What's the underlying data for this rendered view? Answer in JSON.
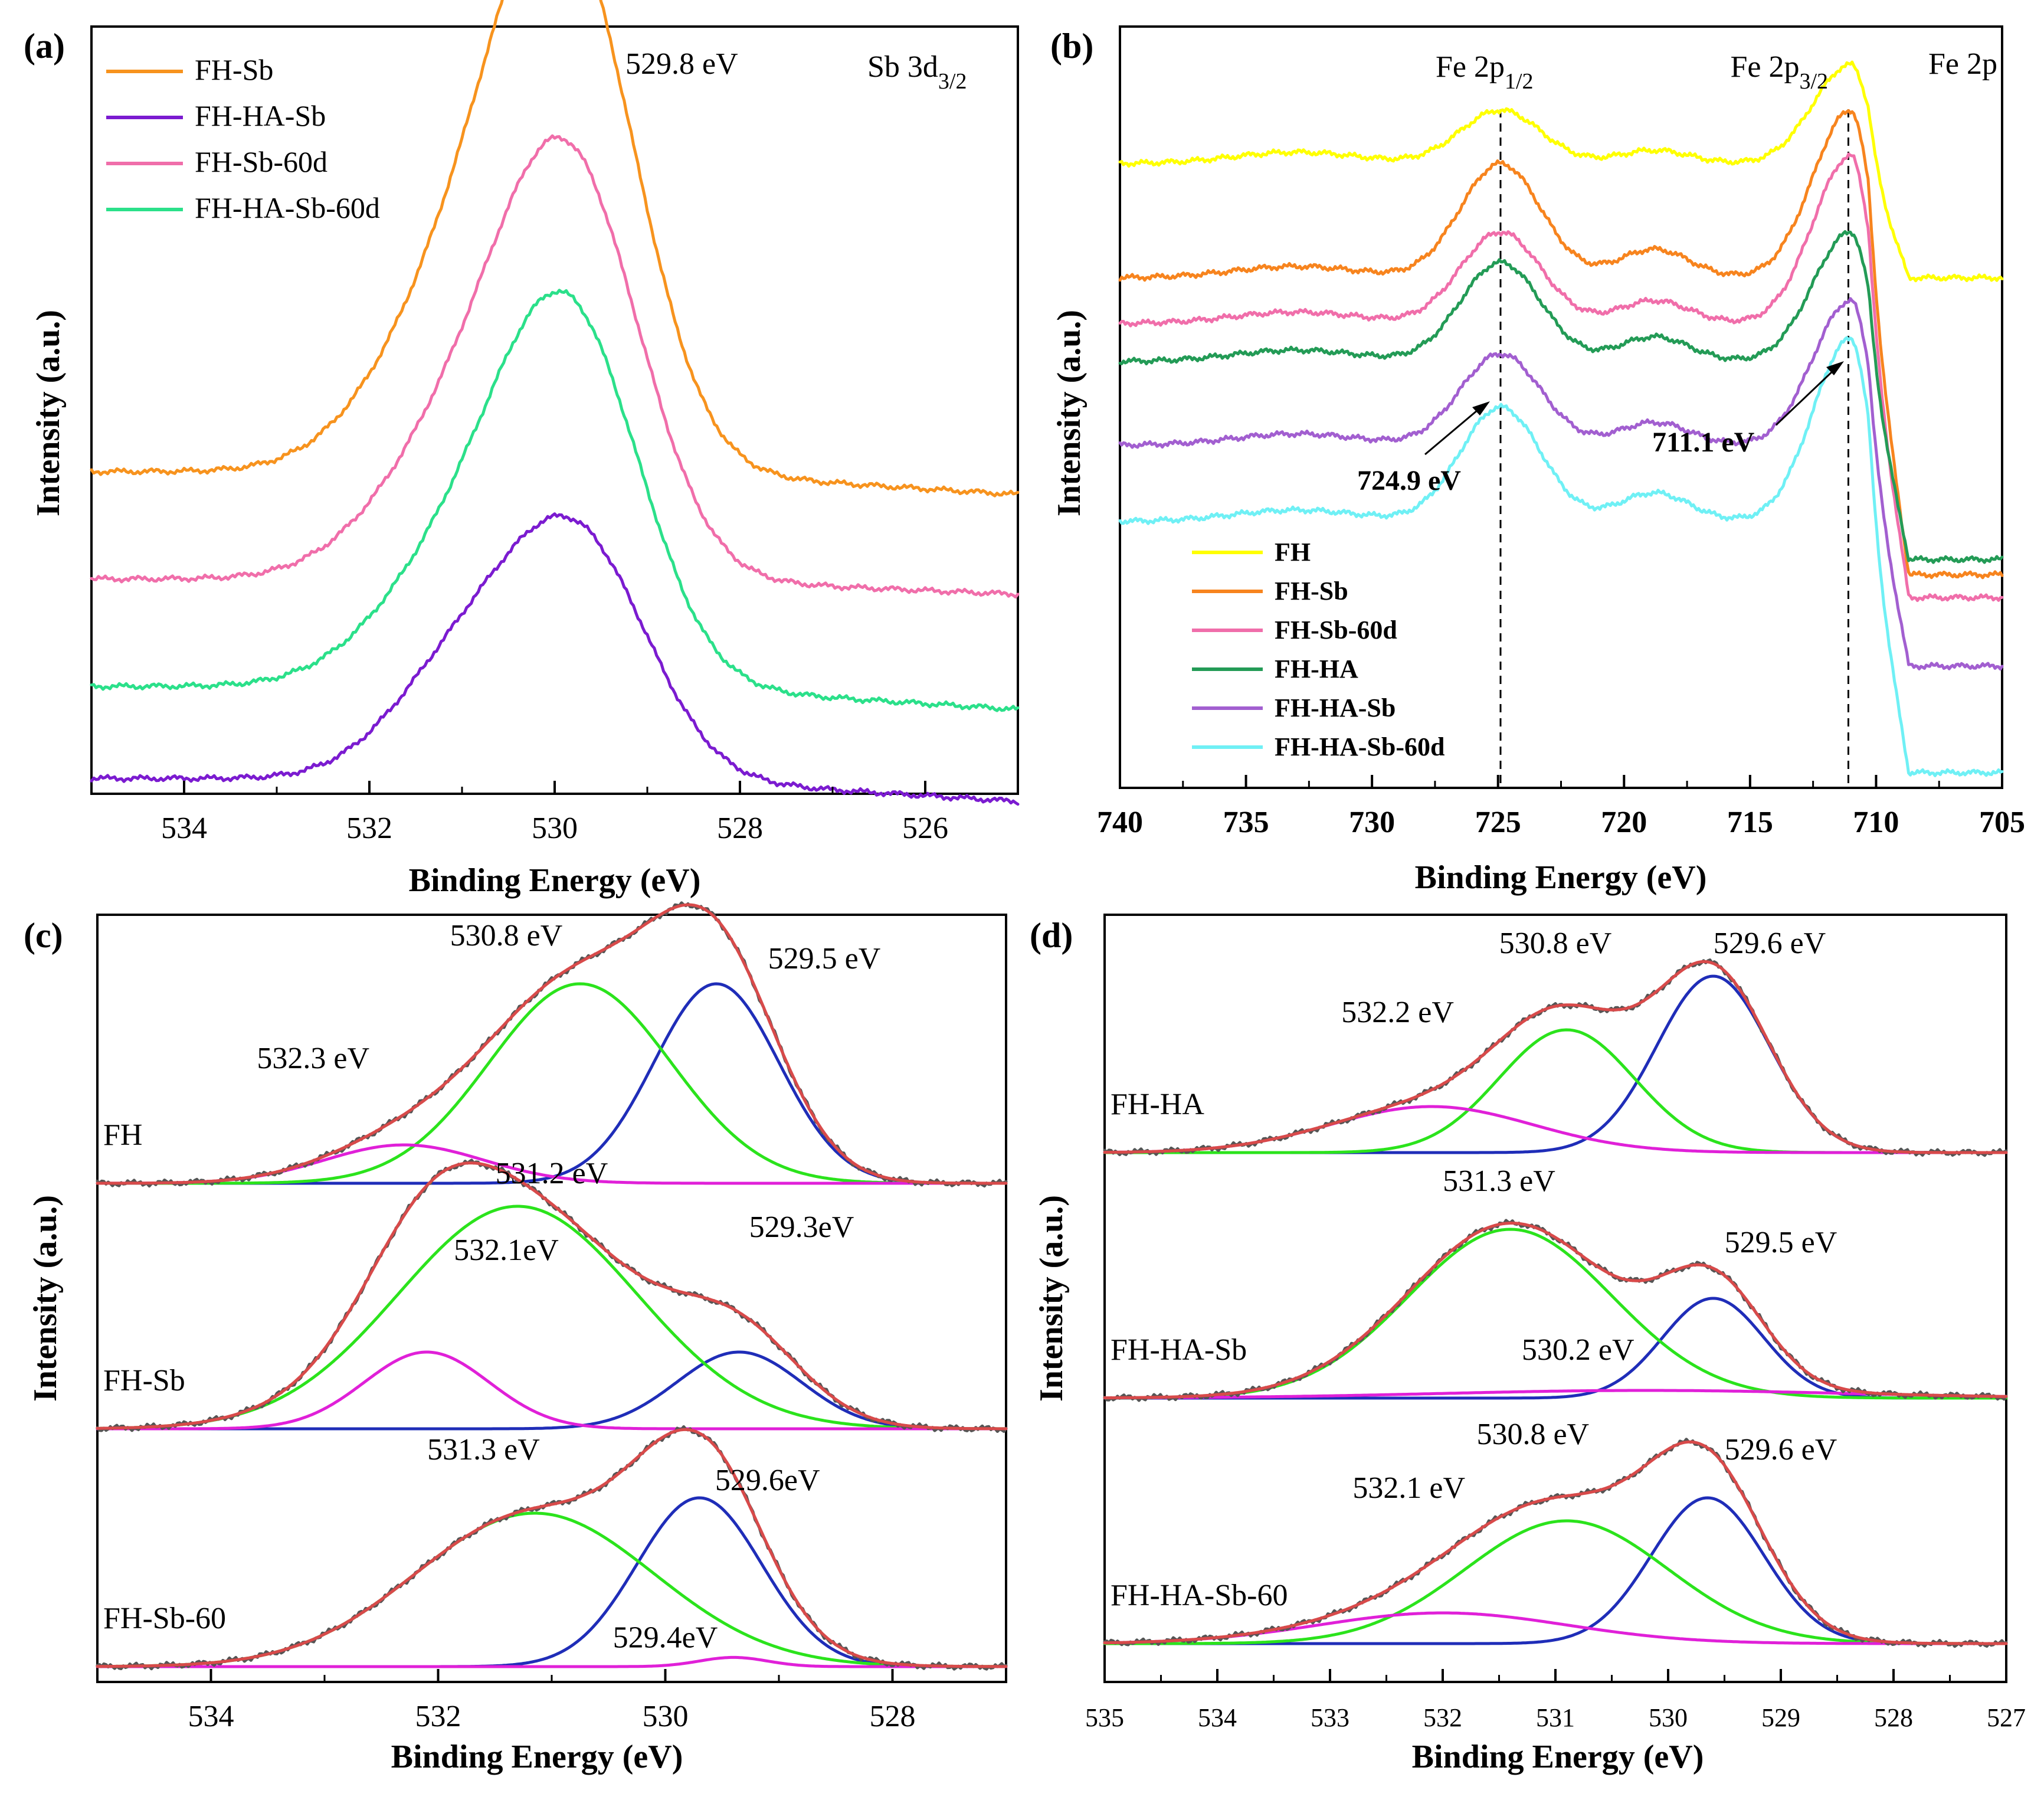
{
  "chart_data": [
    {
      "panel": "(a)",
      "type": "line",
      "xlabel": "Binding Energy (eV)",
      "ylabel": "Intensity (a.u.)",
      "xlim": [
        535,
        525
      ],
      "xticks": [
        534,
        532,
        530,
        528,
        526
      ],
      "annotations": [
        {
          "text": "529.8 eV",
          "x": 529.8
        }
      ],
      "corner_label": "Sb 3d",
      "corner_sub": "3/2",
      "legend": "top-left",
      "series": [
        {
          "name": "FH-Sb",
          "color": "#F7931E",
          "baseline": 0.42,
          "peaks": [
            [
              529.85,
              0.6,
              0.75
            ],
            [
              530.9,
              0.25,
              0.9
            ]
          ],
          "tail": -0.03
        },
        {
          "name": "FH-Sb-60d",
          "color": "#F06EAA",
          "baseline": 0.28,
          "peaks": [
            [
              529.8,
              0.47,
              0.75
            ],
            [
              530.9,
              0.2,
              0.9
            ]
          ],
          "tail": -0.02
        },
        {
          "name": "FH-HA-Sb-60d",
          "color": "#2BE08A",
          "baseline": 0.14,
          "peaks": [
            [
              529.8,
              0.42,
              0.75
            ],
            [
              530.9,
              0.18,
              0.9
            ]
          ],
          "tail": -0.03
        },
        {
          "name": "FH-HA-Sb",
          "color": "#7B1BD0",
          "baseline": 0.02,
          "peaks": [
            [
              529.75,
              0.3,
              0.75
            ],
            [
              531.0,
              0.14,
              0.75
            ]
          ],
          "tail": -0.03
        }
      ],
      "legend_order": [
        "FH-Sb",
        "FH-HA-Sb",
        "FH-Sb-60d",
        "FH-HA-Sb-60d"
      ]
    },
    {
      "panel": "(b)",
      "type": "line",
      "xlabel": "Binding Energy (eV)",
      "ylabel": "Intensity (a.u.)",
      "xlim": [
        740,
        705
      ],
      "xticks": [
        740,
        735,
        730,
        725,
        720,
        715,
        710,
        705
      ],
      "corner_label": "Fe 2p",
      "peak_labels": [
        {
          "text": "Fe 2p",
          "sub": "1/2",
          "x": 724.9
        },
        {
          "text": "Fe 2p",
          "sub": "3/2",
          "x": 711.1
        }
      ],
      "dashed_lines": [
        724.9,
        711.1
      ],
      "annotations": [
        {
          "text": "724.9 eV",
          "x": 724.9
        },
        {
          "text": "711.1 eV",
          "x": 711.1
        }
      ],
      "legend": "bottom-left",
      "series": [
        {
          "name": "FH",
          "color": "#FFFF00",
          "baseline": 0.82,
          "p1": 0.07,
          "p2": 0.13,
          "tail": 0.67
        },
        {
          "name": "FH-Sb",
          "color": "#F7841E",
          "baseline": 0.67,
          "p1": 0.15,
          "p2": 0.22,
          "tail": 0.28
        },
        {
          "name": "FH-Sb-60d",
          "color": "#F06EAA",
          "baseline": 0.61,
          "p1": 0.12,
          "p2": 0.22,
          "tail": 0.25
        },
        {
          "name": "FH-HA",
          "color": "#239B56",
          "baseline": 0.56,
          "p1": 0.13,
          "p2": 0.17,
          "tail": 0.3
        },
        {
          "name": "FH-HA-Sb",
          "color": "#A25FD0",
          "baseline": 0.45,
          "p1": 0.12,
          "p2": 0.19,
          "tail": 0.16
        },
        {
          "name": "FH-HA-Sb-60d",
          "color": "#6FF0F5",
          "baseline": 0.35,
          "p1": 0.15,
          "p2": 0.24,
          "tail": 0.02
        }
      ]
    },
    {
      "panel": "(c)",
      "type": "line",
      "xlabel": "Binding Energy (eV)",
      "ylabel": "Intensity (a.u.)",
      "xlim": [
        535,
        527
      ],
      "xticks": [
        534,
        532,
        530,
        528
      ],
      "groups": [
        {
          "name": "FH",
          "baseline": 0.65,
          "components": [
            {
              "center": 529.55,
              "height": 0.26,
              "sigma": 0.55,
              "color": "#1F2DB8"
            },
            {
              "center": 530.75,
              "height": 0.26,
              "sigma": 0.8,
              "color": "#2BE31C"
            },
            {
              "center": 532.3,
              "height": 0.05,
              "sigma": 0.7,
              "color": "#E020D8"
            }
          ],
          "labels": [
            {
              "text": "532.3 eV",
              "x": 533.1,
              "y": 0.8
            },
            {
              "text": "530.8 eV",
              "x": 531.4,
              "y": 0.96
            },
            {
              "text": "529.5 eV",
              "x": 528.6,
              "y": 0.93
            }
          ]
        },
        {
          "name": "FH-Sb",
          "baseline": 0.33,
          "components": [
            {
              "center": 529.35,
              "height": 0.1,
              "sigma": 0.55,
              "color": "#1F2DB8"
            },
            {
              "center": 531.3,
              "height": 0.29,
              "sigma": 1.05,
              "color": "#2BE31C"
            },
            {
              "center": 532.1,
              "height": 0.1,
              "sigma": 0.55,
              "color": "#E020D8"
            }
          ],
          "labels": [
            {
              "text": "532.1eV",
              "x": 531.4,
              "y": 0.55
            },
            {
              "text": "531.2 eV",
              "x": 531.0,
              "y": 0.65
            },
            {
              "text": "529.3eV",
              "x": 528.8,
              "y": 0.58
            }
          ]
        },
        {
          "name": "FH-Sb-60",
          "baseline": 0.02,
          "components": [
            {
              "center": 529.7,
              "height": 0.22,
              "sigma": 0.55,
              "color": "#1F2DB8"
            },
            {
              "center": 531.15,
              "height": 0.2,
              "sigma": 1.05,
              "color": "#2BE31C"
            },
            {
              "center": 529.4,
              "height": 0.012,
              "sigma": 0.3,
              "color": "#E020D8"
            }
          ],
          "labels": [
            {
              "text": "531.3 eV",
              "x": 531.6,
              "y": 0.29
            },
            {
              "text": "529.6eV",
              "x": 529.1,
              "y": 0.25
            },
            {
              "text": "529.4eV",
              "x": 530.0,
              "y": 0.045
            }
          ]
        }
      ]
    },
    {
      "panel": "(d)",
      "type": "line",
      "xlabel": "Binding Energy (eV)",
      "ylabel": "Intensity (a.u.)",
      "xlim": [
        535,
        527
      ],
      "xticks": [
        535,
        534,
        533,
        532,
        531,
        530,
        529,
        528,
        527
      ],
      "groups": [
        {
          "name": "FH-HA",
          "baseline": 0.69,
          "components": [
            {
              "center": 529.6,
              "height": 0.23,
              "sigma": 0.5,
              "color": "#1F2DB8"
            },
            {
              "center": 530.9,
              "height": 0.16,
              "sigma": 0.6,
              "color": "#2BE31C"
            },
            {
              "center": 532.1,
              "height": 0.06,
              "sigma": 0.9,
              "color": "#E020D8"
            }
          ],
          "labels": [
            {
              "text": "532.2 eV",
              "x": 532.4,
              "y": 0.86
            },
            {
              "text": "530.8 eV",
              "x": 531.0,
              "y": 0.95
            },
            {
              "text": "529.6 eV",
              "x": 529.1,
              "y": 0.95
            }
          ]
        },
        {
          "name": "FH-HA-Sb",
          "baseline": 0.37,
          "components": [
            {
              "center": 529.6,
              "height": 0.13,
              "sigma": 0.45,
              "color": "#1F2DB8"
            },
            {
              "center": 531.4,
              "height": 0.22,
              "sigma": 0.9,
              "color": "#2BE31C"
            },
            {
              "center": 530.2,
              "height": 0.01,
              "sigma": 1.8,
              "color": "#E020D8"
            }
          ],
          "labels": [
            {
              "text": "531.3 eV",
              "x": 531.5,
              "y": 0.64
            },
            {
              "text": "529.5 eV",
              "x": 529.0,
              "y": 0.56
            },
            {
              "text": "530.2 eV",
              "x": 530.8,
              "y": 0.42
            }
          ]
        },
        {
          "name": "FH-HA-Sb-60",
          "baseline": 0.05,
          "components": [
            {
              "center": 529.65,
              "height": 0.19,
              "sigma": 0.5,
              "color": "#1F2DB8"
            },
            {
              "center": 530.9,
              "height": 0.16,
              "sigma": 0.9,
              "color": "#2BE31C"
            },
            {
              "center": 532.0,
              "height": 0.04,
              "sigma": 1.1,
              "color": "#E020D8"
            }
          ],
          "labels": [
            {
              "text": "532.1 eV",
              "x": 532.3,
              "y": 0.24
            },
            {
              "text": "530.8 eV",
              "x": 531.2,
              "y": 0.31
            },
            {
              "text": "529.6 eV",
              "x": 529.0,
              "y": 0.29
            }
          ]
        }
      ]
    }
  ],
  "fit_color": "#D84A4A",
  "data_color": "#555555"
}
